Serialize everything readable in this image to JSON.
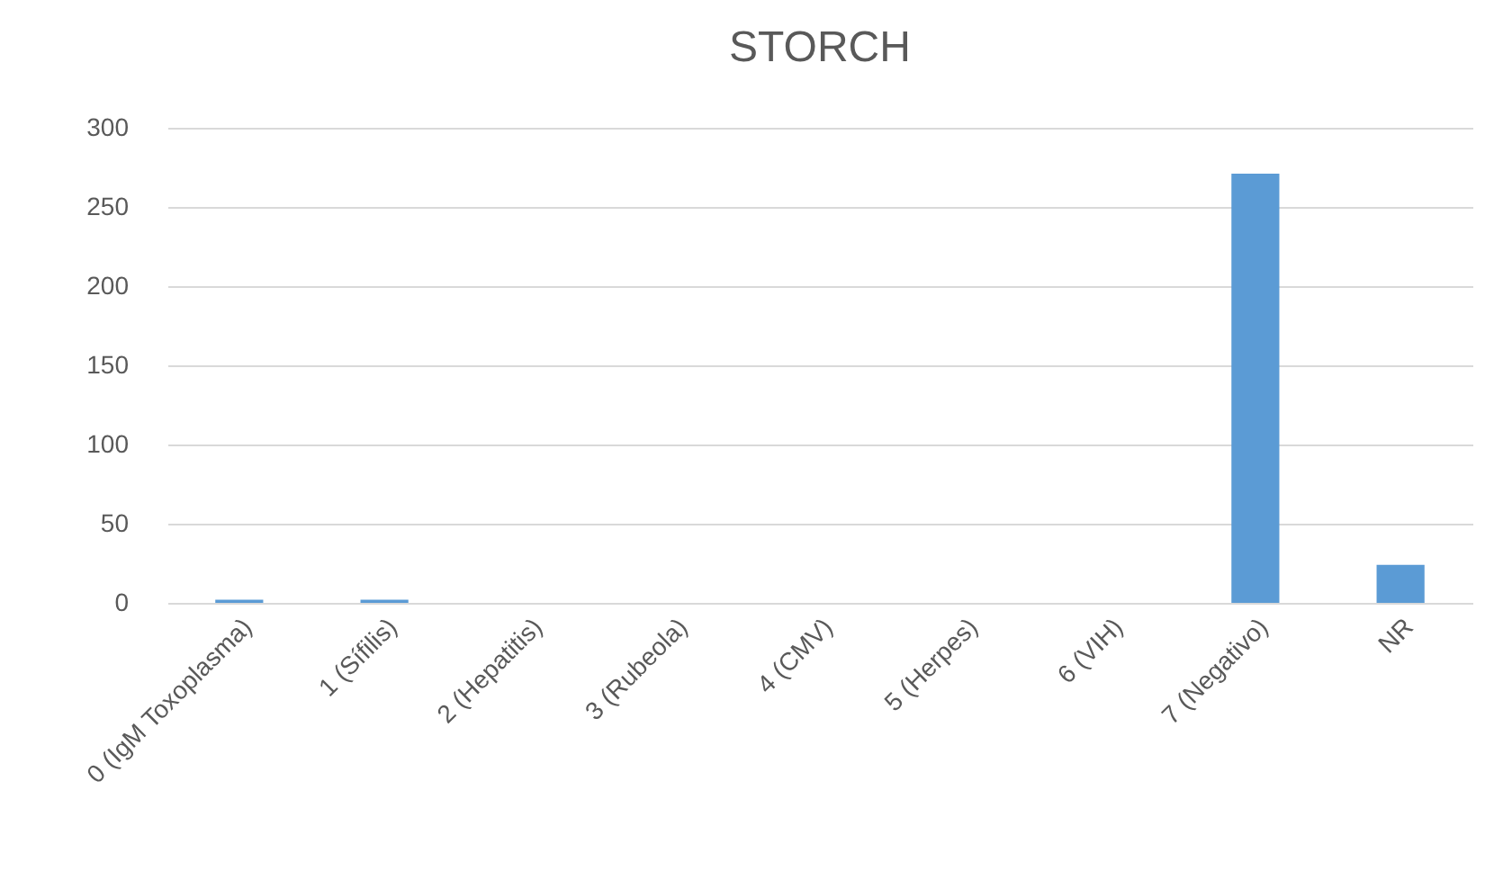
{
  "chart_data": {
    "type": "bar",
    "title": "STORCH",
    "categories": [
      "0 (IgM Toxoplasma)",
      "1 (Sífilis)",
      "2 (Hepatitis)",
      "3 (Rubeola)",
      "4 (CMV)",
      "5 (Herpes)",
      "6 (VIH)",
      "7 (Negativo)",
      "NR"
    ],
    "values": [
      2,
      2,
      0,
      0,
      0,
      0,
      0,
      271,
      24
    ],
    "color": "#5b9bd5",
    "ylim": [
      0,
      300
    ],
    "yticks": [
      0,
      50,
      100,
      150,
      200,
      250,
      300
    ],
    "grid": "y"
  }
}
